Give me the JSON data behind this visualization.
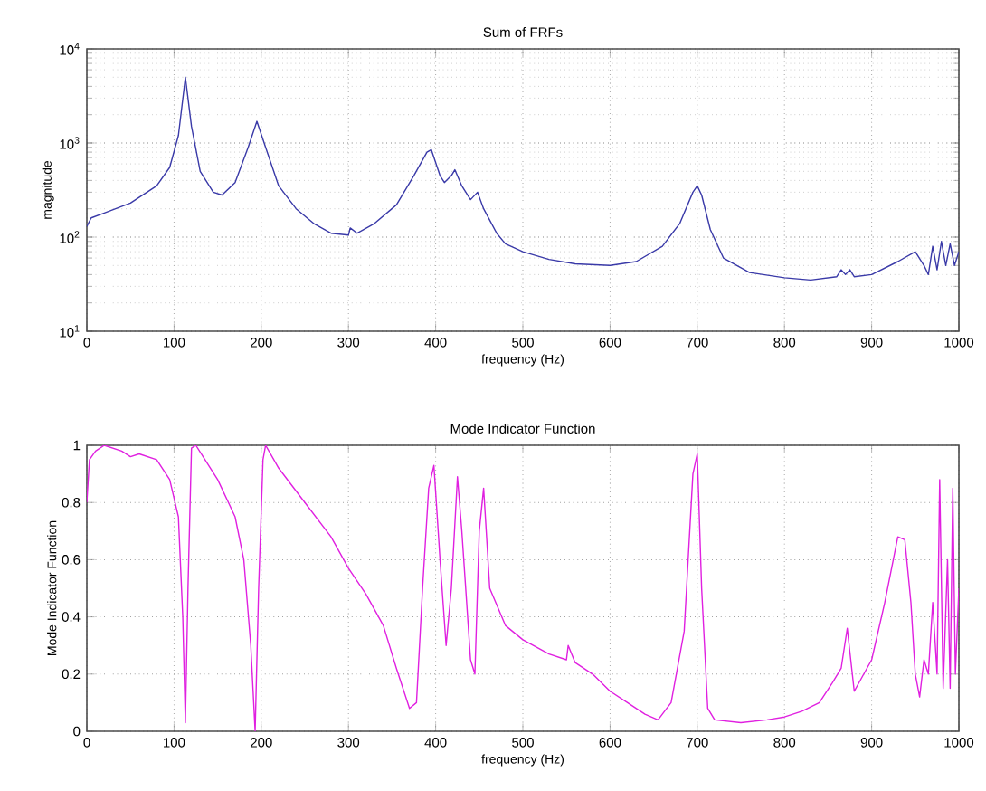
{
  "chart_data": [
    {
      "type": "line",
      "title": "Sum of FRFs",
      "xlabel": "frequency (Hz)",
      "ylabel": "magnitude",
      "log": "y",
      "grid": true,
      "marker": "none",
      "color": "#3a3aa8",
      "xlim": [
        0,
        1000
      ],
      "xticks": [
        0,
        100,
        200,
        300,
        400,
        500,
        600,
        700,
        800,
        900,
        1000
      ],
      "ylim": [
        10,
        10000
      ],
      "yticks": [
        {
          "value": 10,
          "label": "10$^{1}$"
        },
        {
          "value": 100,
          "label": "10$^{2}$"
        },
        {
          "value": 1000,
          "label": "10$^{3}$"
        },
        {
          "value": 10000,
          "label": "10$^{4}$"
        }
      ],
      "x": [
        0,
        5,
        20,
        50,
        80,
        95,
        105,
        113,
        120,
        130,
        145,
        155,
        170,
        185,
        195,
        205,
        220,
        240,
        260,
        280,
        300,
        302,
        310,
        330,
        355,
        375,
        390,
        395,
        405,
        410,
        418,
        422,
        430,
        440,
        448,
        455,
        470,
        480,
        500,
        530,
        560,
        600,
        630,
        660,
        680,
        695,
        700,
        705,
        715,
        730,
        760,
        800,
        830,
        860,
        865,
        870,
        875,
        880,
        900,
        930,
        950,
        960,
        965,
        970,
        975,
        980,
        985,
        990,
        995,
        1000
      ],
      "values": [
        130,
        160,
        180,
        230,
        350,
        550,
        1200,
        5000,
        1500,
        500,
        300,
        280,
        380,
        900,
        1700,
        900,
        350,
        200,
        140,
        110,
        105,
        125,
        110,
        140,
        220,
        450,
        800,
        850,
        450,
        380,
        450,
        520,
        350,
        250,
        300,
        200,
        110,
        85,
        70,
        58,
        52,
        50,
        55,
        80,
        140,
        300,
        350,
        280,
        120,
        60,
        42,
        37,
        35,
        38,
        45,
        40,
        45,
        38,
        40,
        55,
        70,
        50,
        40,
        80,
        45,
        90,
        50,
        85,
        50,
        70
      ]
    },
    {
      "type": "line",
      "title": "Mode Indicator Function",
      "xlabel": "frequency (Hz)",
      "ylabel": "Mode Indicator Function",
      "grid": true,
      "marker": "none",
      "color": "#e020e0",
      "xlim": [
        0,
        1000
      ],
      "xticks": [
        0,
        100,
        200,
        300,
        400,
        500,
        600,
        700,
        800,
        900,
        1000
      ],
      "ylim": [
        0,
        1
      ],
      "yticks": [
        0,
        0.2,
        0.4,
        0.6,
        0.8,
        1
      ],
      "x": [
        0,
        3,
        10,
        20,
        40,
        50,
        60,
        80,
        95,
        105,
        110,
        113,
        116,
        120,
        125,
        150,
        170,
        180,
        188,
        193,
        197,
        202,
        205,
        220,
        250,
        280,
        300,
        320,
        340,
        355,
        370,
        378,
        385,
        392,
        398,
        405,
        412,
        418,
        425,
        430,
        440,
        445,
        450,
        455,
        462,
        480,
        500,
        530,
        550,
        552,
        560,
        580,
        600,
        620,
        640,
        655,
        670,
        685,
        695,
        700,
        705,
        712,
        720,
        750,
        780,
        800,
        820,
        840,
        855,
        865,
        872,
        880,
        900,
        915,
        930,
        938,
        945,
        950,
        955,
        960,
        965,
        970,
        975,
        978,
        982,
        987,
        990,
        993,
        996,
        1000
      ],
      "values": [
        0.8,
        0.95,
        0.98,
        1.0,
        0.98,
        0.96,
        0.97,
        0.95,
        0.88,
        0.75,
        0.4,
        0.03,
        0.5,
        0.99,
        1.0,
        0.88,
        0.75,
        0.6,
        0.3,
        0.0,
        0.5,
        0.95,
        1.0,
        0.92,
        0.8,
        0.68,
        0.57,
        0.48,
        0.37,
        0.22,
        0.08,
        0.1,
        0.5,
        0.85,
        0.93,
        0.6,
        0.3,
        0.5,
        0.89,
        0.7,
        0.25,
        0.2,
        0.7,
        0.85,
        0.5,
        0.37,
        0.32,
        0.27,
        0.25,
        0.3,
        0.24,
        0.2,
        0.14,
        0.1,
        0.06,
        0.04,
        0.1,
        0.35,
        0.9,
        0.97,
        0.5,
        0.08,
        0.04,
        0.03,
        0.04,
        0.05,
        0.07,
        0.1,
        0.17,
        0.22,
        0.36,
        0.14,
        0.25,
        0.45,
        0.68,
        0.67,
        0.45,
        0.2,
        0.12,
        0.25,
        0.2,
        0.45,
        0.2,
        0.88,
        0.15,
        0.6,
        0.15,
        0.85,
        0.2,
        0.5
      ]
    }
  ]
}
